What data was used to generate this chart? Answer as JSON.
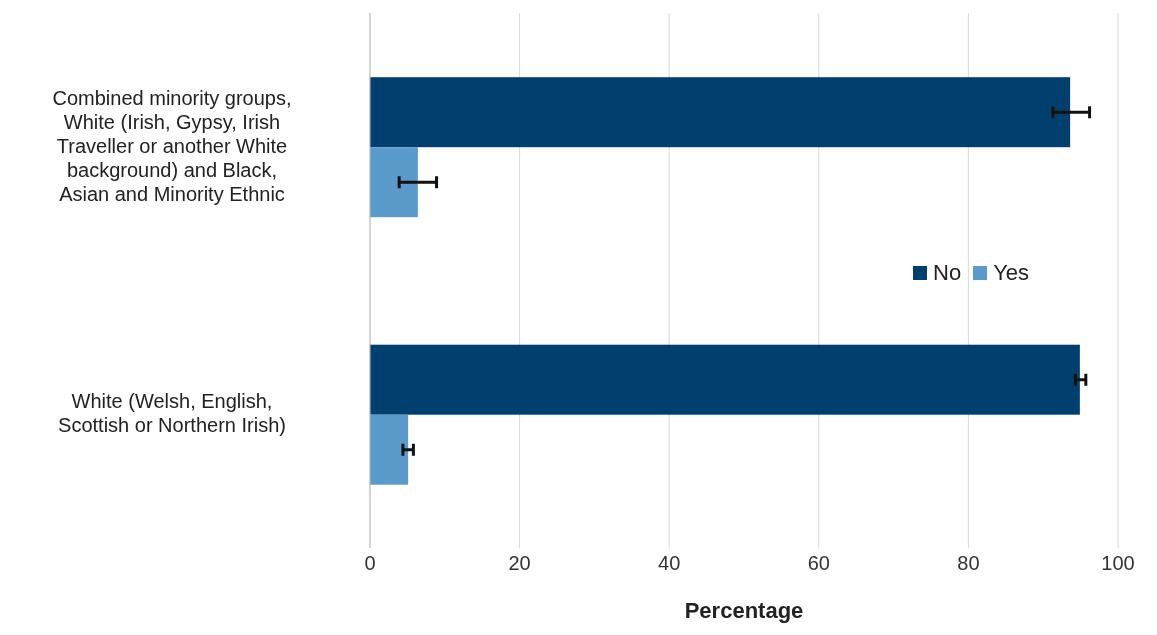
{
  "chart_data": {
    "type": "bar",
    "orientation": "horizontal",
    "xlabel": "Percentage",
    "categories": [
      "Combined minority groups, White (Irish, Gypsy, Irish Traveller or another White background) and Black, Asian and Minority Ethnic",
      "White (Welsh, English, Scottish or Northern Irish)"
    ],
    "series": [
      {
        "name": "No",
        "color": "#003f6e",
        "values": [
          93.6,
          94.9
        ],
        "errors": [
          [
            91.3,
            96.2
          ],
          [
            94.3,
            95.7
          ]
        ]
      },
      {
        "name": "Yes",
        "color": "#5b9bcc",
        "values": [
          6.4,
          5.1
        ],
        "errors": [
          [
            3.9,
            8.9
          ],
          [
            4.4,
            5.8
          ]
        ]
      }
    ],
    "xlim": [
      0,
      100
    ],
    "xticks": [
      0,
      20,
      40,
      60,
      80,
      100
    ],
    "grid": "x",
    "legend": "right"
  }
}
